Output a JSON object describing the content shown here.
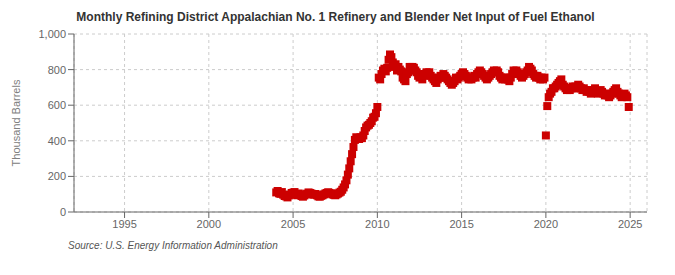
{
  "chart_data": {
    "type": "scatter",
    "title": "Monthly Refining District Appalachian No. 1 Refinery and Blender Net Input of Fuel Ethanol",
    "ylabel": "Thousand Barrels",
    "annotations": [
      "Source: U.S. Energy Information Administration"
    ],
    "color": "#cc0000",
    "marker": "square",
    "grid": true,
    "xlim": [
      1992.0,
      2026.0
    ],
    "xticks": [
      1995,
      2000,
      2005,
      2010,
      2015,
      2020,
      2025
    ],
    "ylim": [
      0,
      1000
    ],
    "yticks": [
      0,
      200,
      400,
      600,
      800,
      {
        "value": 1000,
        "label": "1,000"
      }
    ],
    "x": [
      2004.0,
      2004.083,
      2004.167,
      2004.25,
      2004.333,
      2004.417,
      2004.5,
      2004.583,
      2004.667,
      2004.75,
      2004.833,
      2004.917,
      2005.0,
      2005.083,
      2005.167,
      2005.25,
      2005.333,
      2005.417,
      2005.5,
      2005.583,
      2005.667,
      2005.75,
      2005.833,
      2005.917,
      2006.0,
      2006.083,
      2006.167,
      2006.25,
      2006.333,
      2006.417,
      2006.5,
      2006.583,
      2006.667,
      2006.75,
      2006.833,
      2006.917,
      2007.0,
      2007.083,
      2007.167,
      2007.25,
      2007.333,
      2007.417,
      2007.5,
      2007.583,
      2007.667,
      2007.75,
      2007.833,
      2007.917,
      2008.0,
      2008.083,
      2008.167,
      2008.25,
      2008.333,
      2008.417,
      2008.5,
      2008.583,
      2008.667,
      2008.75,
      2008.833,
      2008.917,
      2009.0,
      2009.083,
      2009.167,
      2009.25,
      2009.333,
      2009.417,
      2009.5,
      2009.583,
      2009.667,
      2009.75,
      2009.833,
      2009.917,
      2010.0,
      2010.083,
      2010.167,
      2010.25,
      2010.333,
      2010.417,
      2010.5,
      2010.583,
      2010.667,
      2010.75,
      2010.833,
      2010.917,
      2011.0,
      2011.083,
      2011.167,
      2011.25,
      2011.333,
      2011.417,
      2011.5,
      2011.583,
      2011.667,
      2011.75,
      2011.833,
      2011.917,
      2012.0,
      2012.083,
      2012.167,
      2012.25,
      2012.333,
      2012.417,
      2012.5,
      2012.583,
      2012.667,
      2012.75,
      2012.833,
      2012.917,
      2013.0,
      2013.083,
      2013.167,
      2013.25,
      2013.333,
      2013.417,
      2013.5,
      2013.583,
      2013.667,
      2013.75,
      2013.833,
      2013.917,
      2014.0,
      2014.083,
      2014.167,
      2014.25,
      2014.333,
      2014.417,
      2014.5,
      2014.583,
      2014.667,
      2014.75,
      2014.833,
      2014.917,
      2015.0,
      2015.083,
      2015.167,
      2015.25,
      2015.333,
      2015.417,
      2015.5,
      2015.583,
      2015.667,
      2015.75,
      2015.833,
      2015.917,
      2016.0,
      2016.083,
      2016.167,
      2016.25,
      2016.333,
      2016.417,
      2016.5,
      2016.583,
      2016.667,
      2016.75,
      2016.833,
      2016.917,
      2017.0,
      2017.083,
      2017.167,
      2017.25,
      2017.333,
      2017.417,
      2017.5,
      2017.583,
      2017.667,
      2017.75,
      2017.833,
      2017.917,
      2018.0,
      2018.083,
      2018.167,
      2018.25,
      2018.333,
      2018.417,
      2018.5,
      2018.583,
      2018.667,
      2018.75,
      2018.833,
      2018.917,
      2019.0,
      2019.083,
      2019.167,
      2019.25,
      2019.333,
      2019.417,
      2019.5,
      2019.583,
      2019.667,
      2019.75,
      2019.833,
      2019.917,
      2020.0,
      2020.083,
      2020.167,
      2020.25,
      2020.333,
      2020.417,
      2020.5,
      2020.583,
      2020.667,
      2020.75,
      2020.833,
      2020.917,
      2021.0,
      2021.083,
      2021.167,
      2021.25,
      2021.333,
      2021.417,
      2021.5,
      2021.583,
      2021.667,
      2021.75,
      2021.833,
      2021.917,
      2022.0,
      2022.083,
      2022.167,
      2022.25,
      2022.333,
      2022.417,
      2022.5,
      2022.583,
      2022.667,
      2022.75,
      2022.833,
      2022.917,
      2023.0,
      2023.083,
      2023.167,
      2023.25,
      2023.333,
      2023.417,
      2023.5,
      2023.583,
      2023.667,
      2023.75,
      2023.833,
      2023.917,
      2024.0,
      2024.083,
      2024.167,
      2024.25,
      2024.333,
      2024.417,
      2024.5,
      2024.583,
      2024.667,
      2024.75,
      2024.833,
      2024.917
    ],
    "values": [
      110,
      118,
      105,
      102,
      112,
      97,
      90,
      88,
      82,
      93,
      98,
      107,
      108,
      112,
      99,
      94,
      104,
      96,
      90,
      86,
      93,
      99,
      103,
      110,
      107,
      104,
      99,
      97,
      101,
      94,
      88,
      86,
      91,
      94,
      99,
      104,
      107,
      111,
      107,
      104,
      99,
      97,
      94,
      99,
      104,
      109,
      114,
      125,
      138,
      155,
      178,
      210,
      245,
      285,
      325,
      365,
      405,
      420,
      415,
      410,
      420,
      415,
      430,
      455,
      475,
      485,
      490,
      500,
      510,
      530,
      535,
      555,
      590,
      755,
      745,
      775,
      795,
      805,
      790,
      810,
      855,
      885,
      870,
      840,
      815,
      830,
      795,
      815,
      800,
      790,
      755,
      745,
      735,
      775,
      785,
      815,
      795,
      815,
      810,
      795,
      785,
      765,
      755,
      775,
      745,
      765,
      775,
      785,
      775,
      785,
      765,
      755,
      745,
      735,
      725,
      745,
      755,
      765,
      755,
      775,
      765,
      755,
      745,
      735,
      725,
      715,
      725,
      735,
      755,
      745,
      755,
      765,
      775,
      785,
      775,
      765,
      755,
      745,
      755,
      745,
      755,
      765,
      755,
      775,
      785,
      795,
      785,
      775,
      765,
      755,
      745,
      755,
      765,
      775,
      785,
      795,
      785,
      795,
      785,
      765,
      755,
      745,
      755,
      745,
      755,
      745,
      735,
      755,
      775,
      795,
      785,
      795,
      785,
      775,
      765,
      755,
      765,
      775,
      785,
      795,
      815,
      805,
      795,
      775,
      765,
      755,
      765,
      755,
      745,
      755,
      745,
      755,
      430,
      595,
      645,
      665,
      675,
      695,
      695,
      705,
      715,
      725,
      735,
      745,
      715,
      705,
      695,
      685,
      695,
      685,
      695,
      705,
      695,
      705,
      695,
      715,
      705,
      695,
      685,
      695,
      685,
      675,
      685,
      675,
      665,
      675,
      685,
      695,
      675,
      665,
      675,
      685,
      675,
      665,
      655,
      665,
      655,
      645,
      655,
      665,
      675,
      685,
      695,
      675,
      665,
      655,
      645,
      655,
      665,
      655,
      645,
      590
    ]
  }
}
